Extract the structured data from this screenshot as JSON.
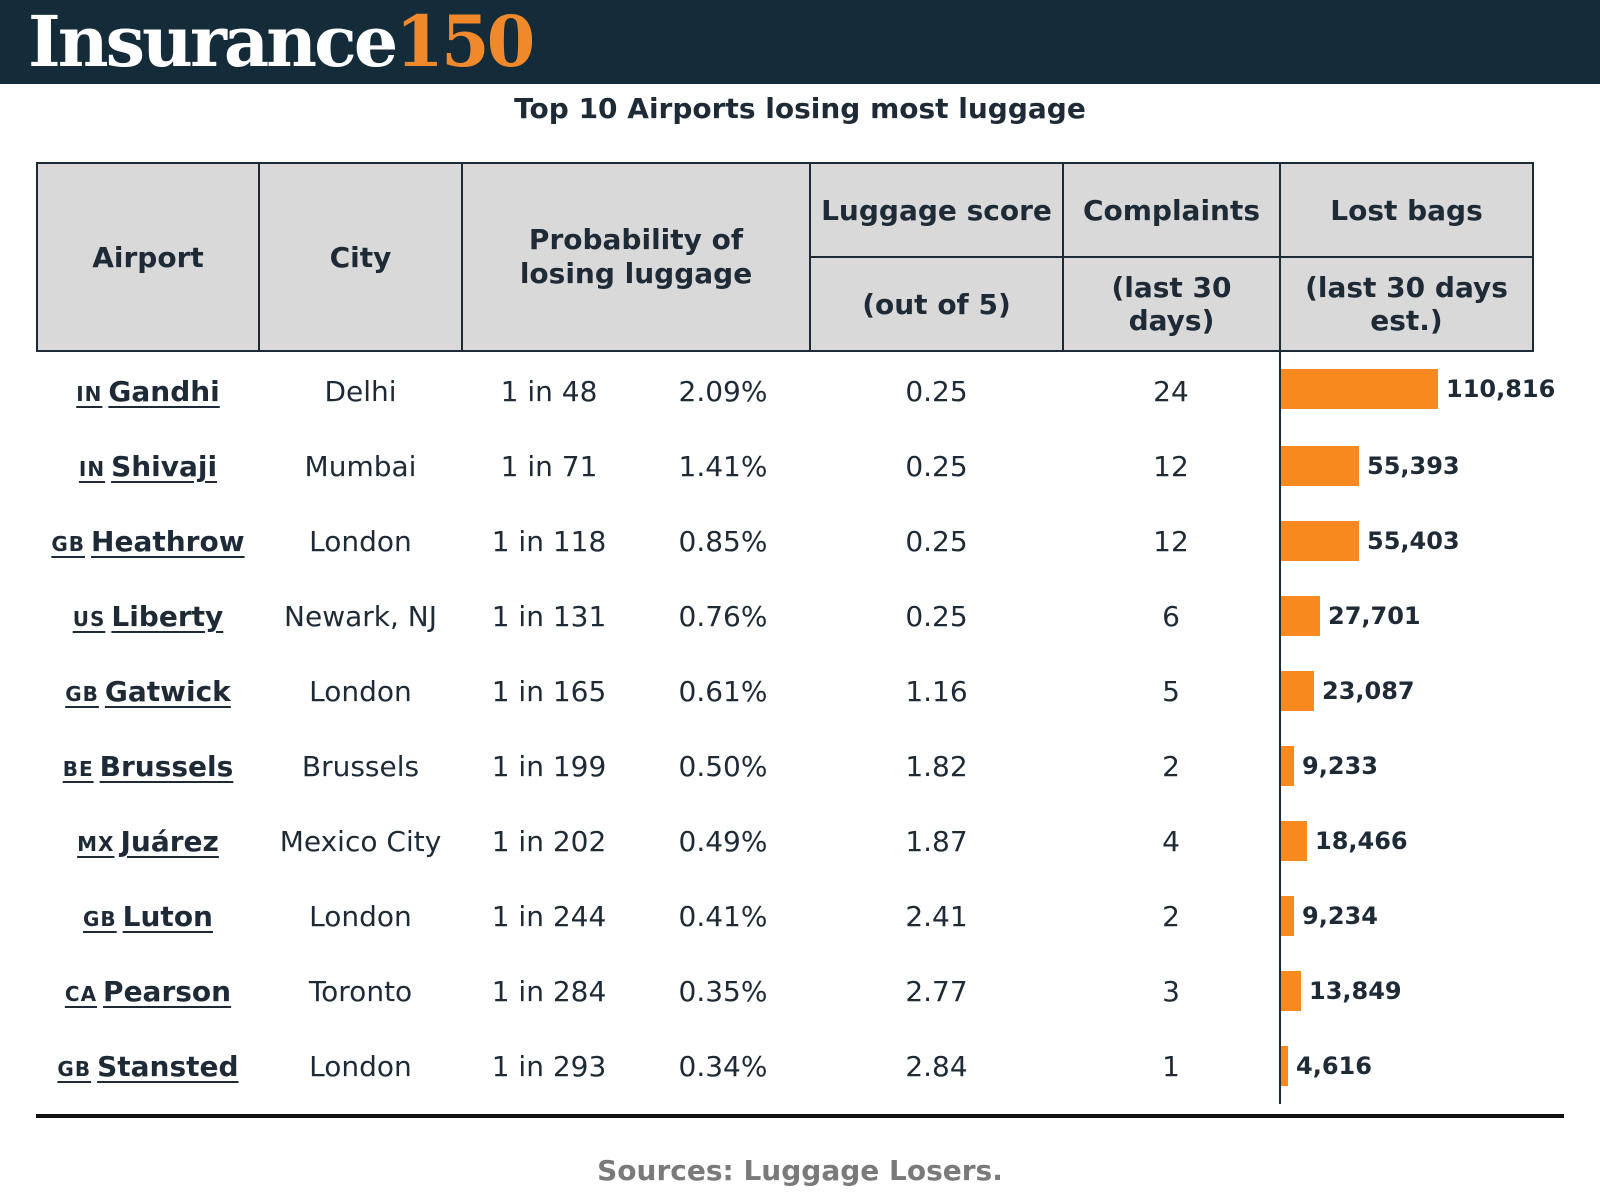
{
  "brand": {
    "name_word": "Insurance",
    "name_num": "150"
  },
  "title": "Top 10 Airports losing most luggage",
  "headers": {
    "airport": "Airport",
    "city": "City",
    "probability": "Probability of losing luggage",
    "score": "Luggage score",
    "score_sub": "(out of 5)",
    "complaints": "Complaints",
    "complaints_sub": "(last 30 days)",
    "lost": "Lost bags",
    "lost_sub": "(last 30 days est.)"
  },
  "rows": [
    {
      "cc": "IN",
      "airport": "Gandhi",
      "city": "Delhi",
      "odds": "1 in 48",
      "pct": "2.09%",
      "score": "0.25",
      "complaints": "24",
      "lost": 110816,
      "lost_label": "110,816"
    },
    {
      "cc": "IN",
      "airport": "Shivaji",
      "city": "Mumbai",
      "odds": "1 in 71",
      "pct": "1.41%",
      "score": "0.25",
      "complaints": "12",
      "lost": 55393,
      "lost_label": "55,393"
    },
    {
      "cc": "GB",
      "airport": "Heathrow",
      "city": "London",
      "odds": "1 in 118",
      "pct": "0.85%",
      "score": "0.25",
      "complaints": "12",
      "lost": 55403,
      "lost_label": "55,403"
    },
    {
      "cc": "US",
      "airport": "Liberty",
      "city": "Newark, NJ",
      "odds": "1 in 131",
      "pct": "0.76%",
      "score": "0.25",
      "complaints": "6",
      "lost": 27701,
      "lost_label": "27,701"
    },
    {
      "cc": "GB",
      "airport": "Gatwick",
      "city": "London",
      "odds": "1 in 165",
      "pct": "0.61%",
      "score": "1.16",
      "complaints": "5",
      "lost": 23087,
      "lost_label": "23,087"
    },
    {
      "cc": "BE",
      "airport": "Brussels",
      "city": "Brussels",
      "odds": "1 in 199",
      "pct": "0.50%",
      "score": "1.82",
      "complaints": "2",
      "lost": 9233,
      "lost_label": "9,233"
    },
    {
      "cc": "MX",
      "airport": "Juárez",
      "city": "Mexico City",
      "odds": "1 in 202",
      "pct": "0.49%",
      "score": "1.87",
      "complaints": "4",
      "lost": 18466,
      "lost_label": "18,466"
    },
    {
      "cc": "GB",
      "airport": "Luton",
      "city": "London",
      "odds": "1 in 244",
      "pct": "0.41%",
      "score": "2.41",
      "complaints": "2",
      "lost": 9234,
      "lost_label": "9,234"
    },
    {
      "cc": "CA",
      "airport": "Pearson",
      "city": "Toronto",
      "odds": "1 in 284",
      "pct": "0.35%",
      "score": "2.77",
      "complaints": "3",
      "lost": 13849,
      "lost_label": "13,849"
    },
    {
      "cc": "GB",
      "airport": "Stansted",
      "city": "London",
      "odds": "1 in 293",
      "pct": "0.34%",
      "score": "2.84",
      "complaints": "1",
      "lost": 4616,
      "lost_label": "4,616"
    }
  ],
  "source": "Sources: Luggage Losers.",
  "colors": {
    "bar": "#f7891f",
    "header_bg": "#d9d9d9",
    "topbar": "#142b3a",
    "accent": "#f0892b"
  },
  "chart_data": {
    "type": "table",
    "title": "Top 10 Airports losing most luggage",
    "columns": [
      "Airport",
      "City",
      "Probability of losing luggage",
      "Luggage score (out of 5)",
      "Complaints (last 30 days)",
      "Lost bags (last 30 days est.)"
    ],
    "categories": [
      "Gandhi",
      "Shivaji",
      "Heathrow",
      "Liberty",
      "Gatwick",
      "Brussels",
      "Juárez",
      "Luton",
      "Pearson",
      "Stansted"
    ],
    "series": [
      {
        "name": "Lost bags",
        "values": [
          110816,
          55393,
          55403,
          27701,
          23087,
          9233,
          18466,
          9234,
          13849,
          4616
        ]
      }
    ]
  }
}
